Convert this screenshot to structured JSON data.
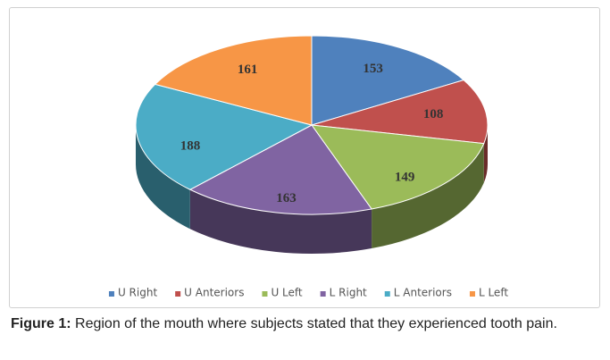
{
  "chart_data": {
    "type": "pie3d",
    "categories": [
      "U Right",
      "U Anteriors",
      "U Left",
      "L Right",
      "L Anteriors",
      "L Left"
    ],
    "values": [
      153,
      108,
      149,
      163,
      188,
      161
    ],
    "colors": [
      "#4f81bd",
      "#c0504d",
      "#9bbb59",
      "#8064a2",
      "#4bacc6",
      "#f79646"
    ],
    "legend": "bottom"
  },
  "caption": {
    "label": "Figure 1:",
    "text": "Region of the mouth where subjects stated that they experienced tooth pain."
  }
}
